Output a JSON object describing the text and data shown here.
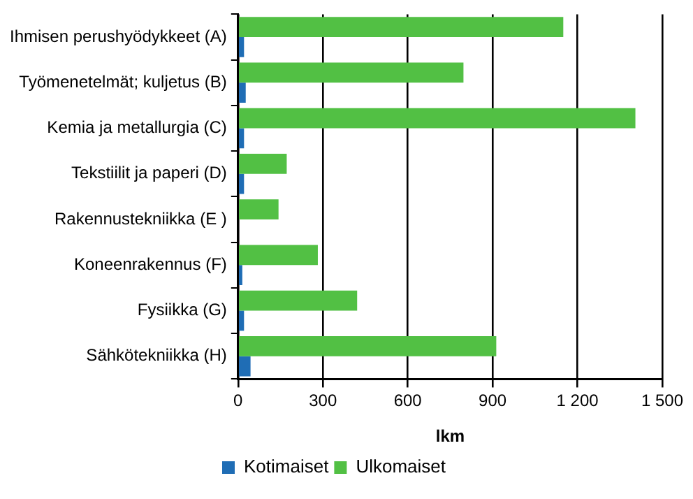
{
  "chart_data": {
    "type": "bar",
    "orientation": "horizontal",
    "xlabel": "lkm",
    "categories": [
      "Ihmisen perushyödykkeet (A)",
      "Työmenetelmät; kuljetus (B)",
      "Kemia ja metallurgia (C)",
      "Tekstiilit ja paperi (D)",
      "Rakennustekniikka (E )",
      "Koneenrakennus (F)",
      "Fysiikka (G)",
      "Sähkötekniikka (H)"
    ],
    "series": [
      {
        "name": "Kotimaiset",
        "color": "#1f6db5",
        "values": [
          21,
          27,
          21,
          21,
          0,
          15,
          21,
          44
        ]
      },
      {
        "name": "Ulkomaiset",
        "color": "#52c044",
        "values": [
          1150,
          797,
          1405,
          172,
          143,
          282,
          421,
          913
        ]
      }
    ],
    "xlim": [
      0,
      1500
    ],
    "xticks": [
      0,
      300,
      600,
      900,
      {
        "value": 1200,
        "label": "1 200"
      },
      {
        "value": 1500,
        "label": "1 500"
      }
    ],
    "grid": "x",
    "legend": "bottom"
  }
}
